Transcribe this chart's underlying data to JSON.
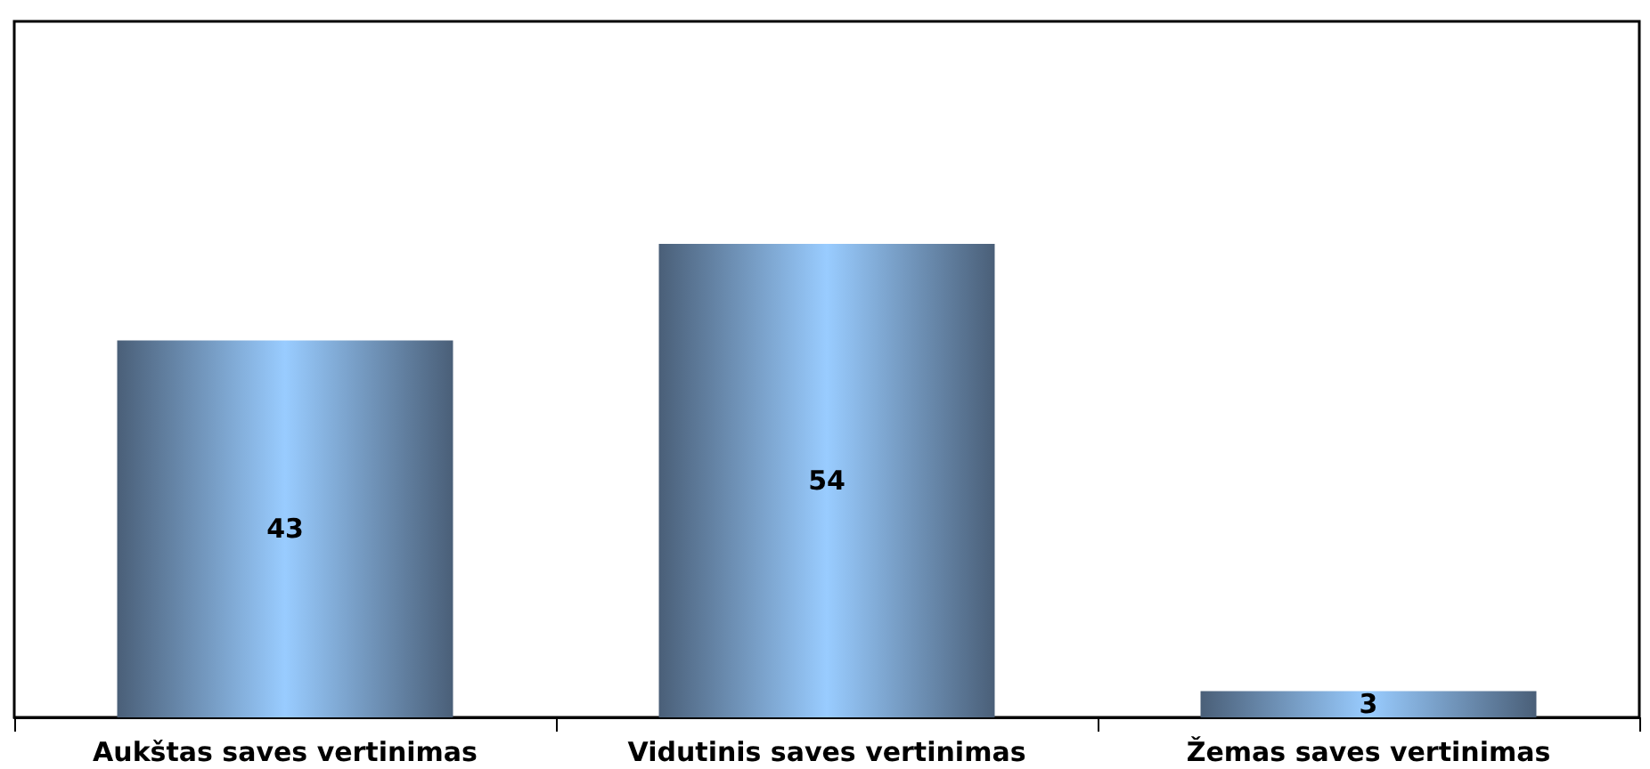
{
  "chart_data": {
    "type": "bar",
    "categories": [
      "Aukštas saves vertinimas",
      "Vidutinis saves vertinimas",
      "Žemas saves vertinimas"
    ],
    "values": [
      43,
      54,
      3
    ],
    "color": "#99ccff",
    "data_labels": true
  }
}
